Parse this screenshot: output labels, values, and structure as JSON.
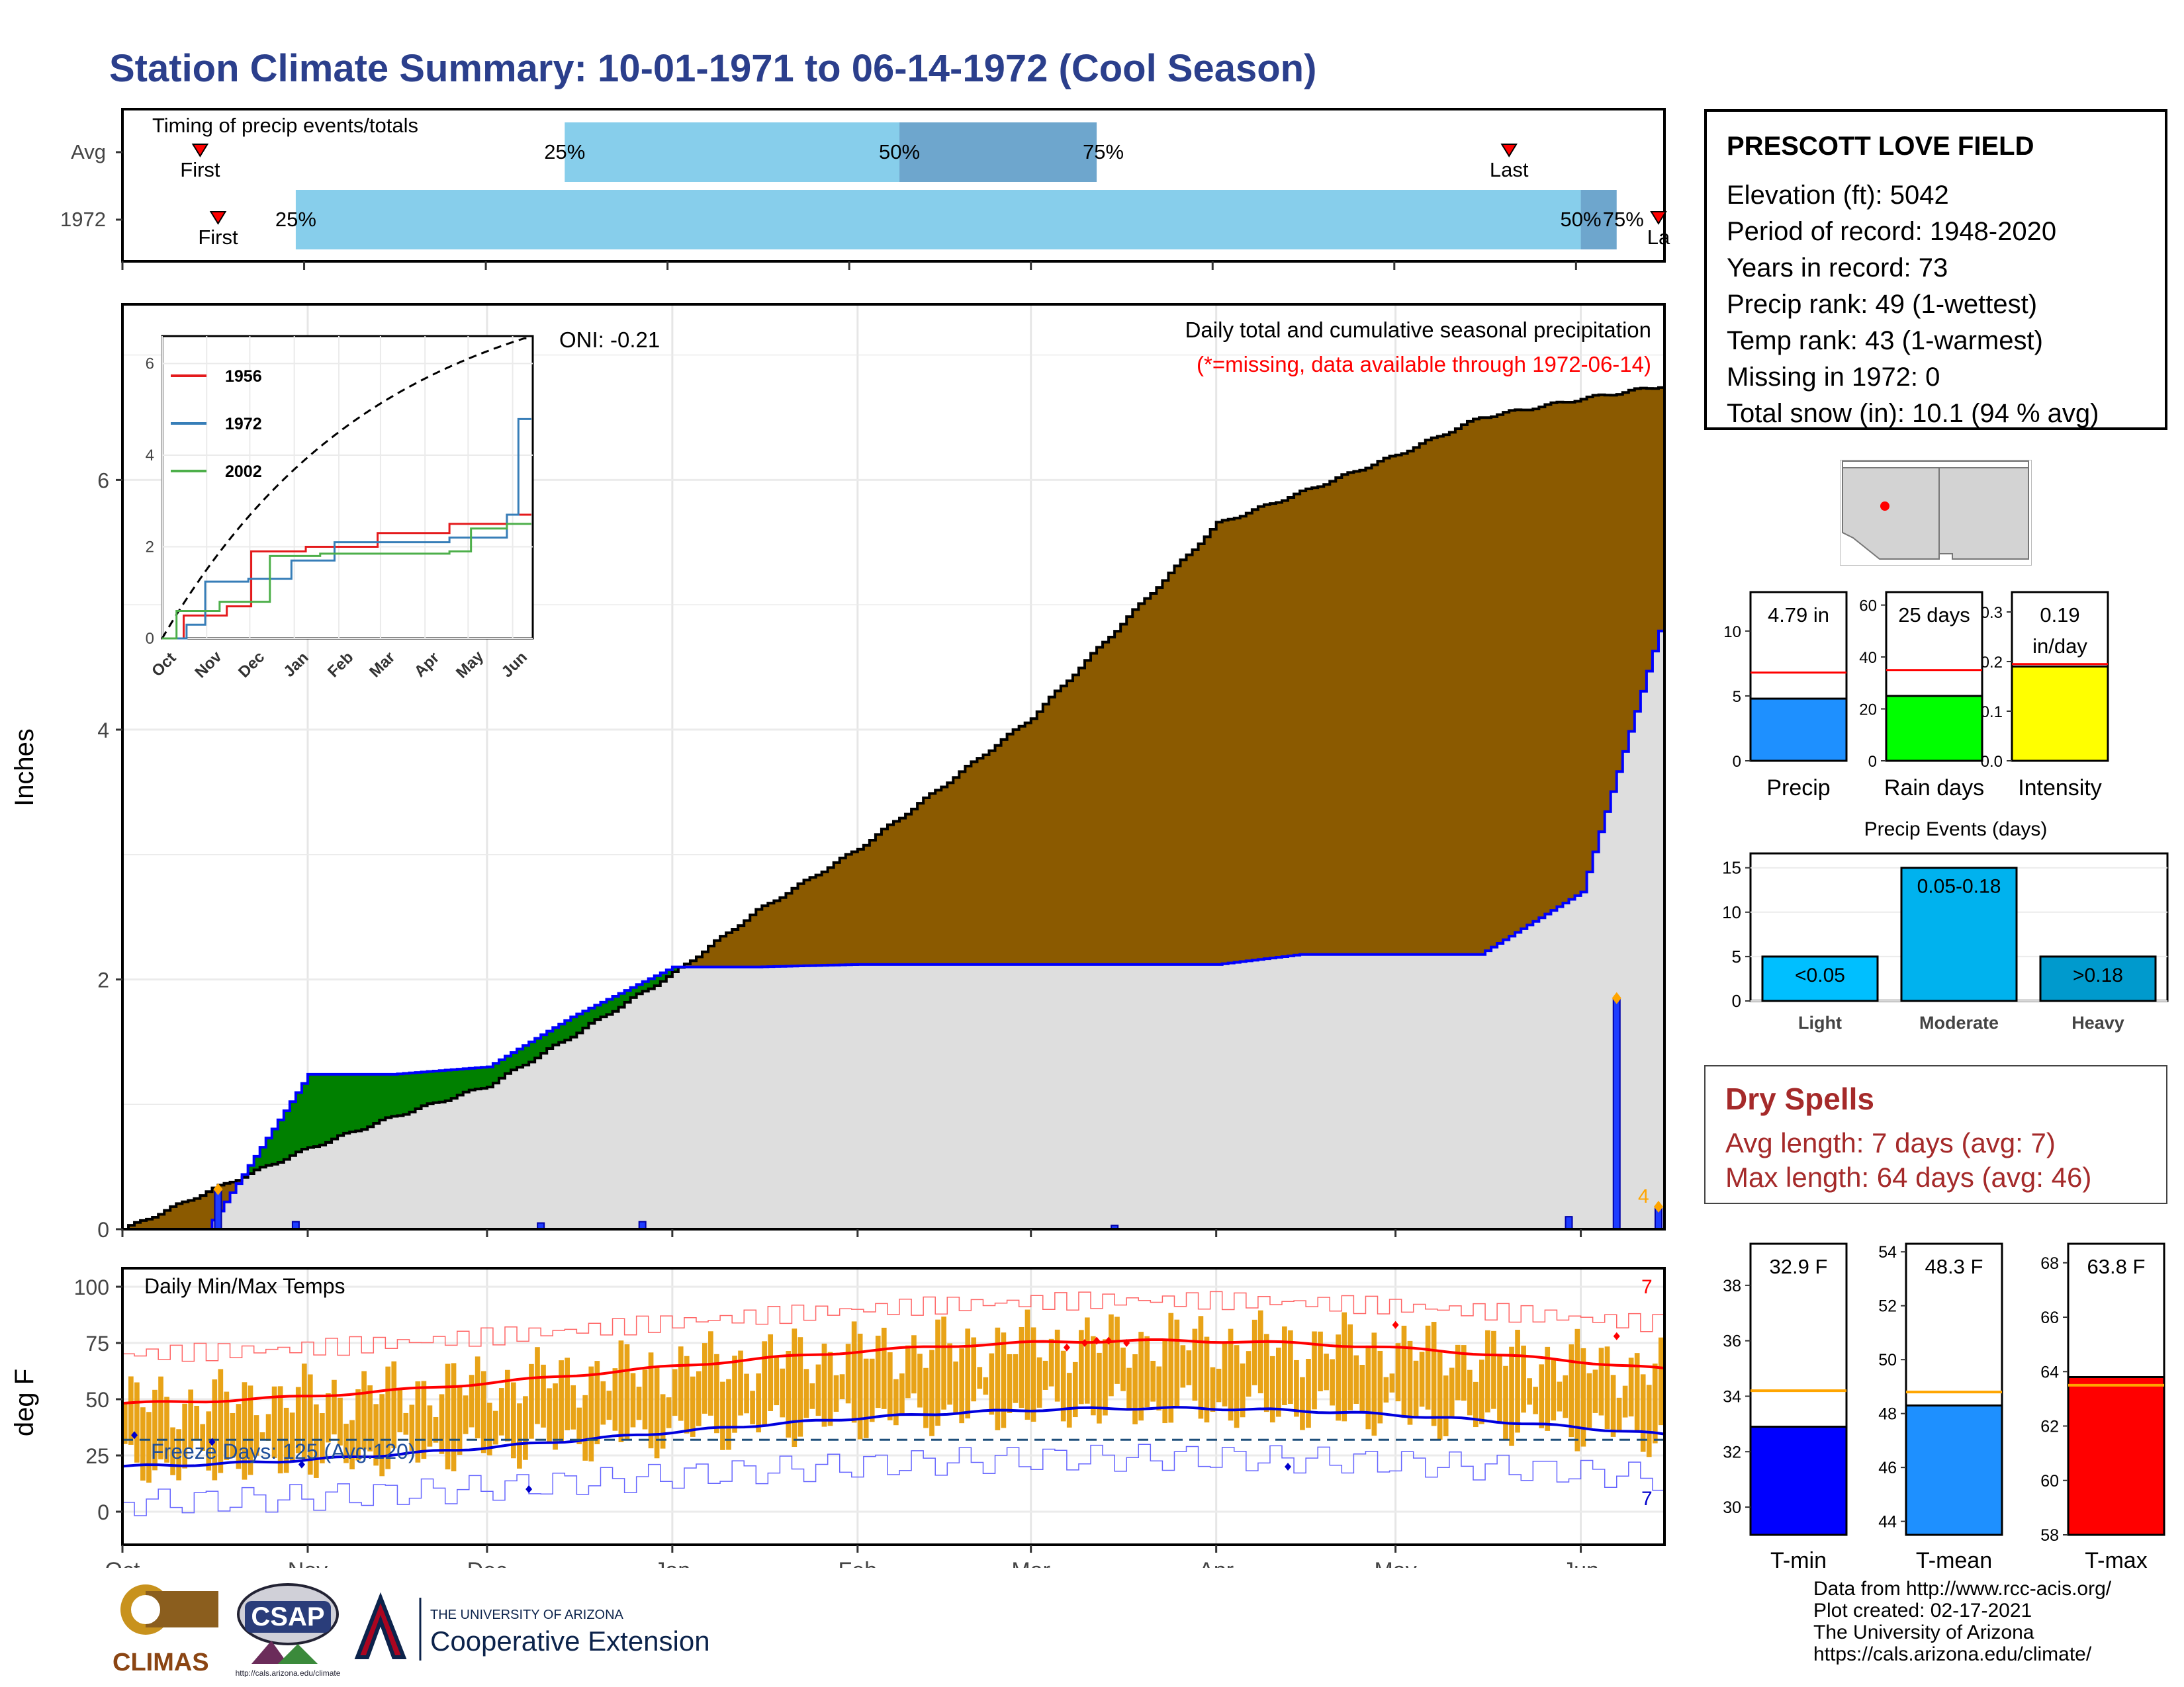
{
  "title": "Station Climate Summary: 10-01-1971 to 06-14-1972 (Cool Season)",
  "timing": {
    "label": "Timing of precip events/totals",
    "rows": [
      {
        "name": "Avg",
        "first_label": "First",
        "last_label": "Last",
        "first_date": "1971-10-14",
        "last_date": "1972-05-20",
        "q25": "1971-12-14",
        "q50": "1972-02-08",
        "q75": "1972-03-12",
        "labels": [
          "25%",
          "50%",
          "75%"
        ]
      },
      {
        "name": "1972",
        "first_label": "First",
        "last_label": "La",
        "first_date": "1971-10-17",
        "last_date": "1972-06-14",
        "q25": "1971-10-30",
        "q50": "1972-06-01",
        "q75": "1972-06-07",
        "labels": [
          "25%",
          "50%",
          "75%"
        ]
      }
    ]
  },
  "main_chart": {
    "ylabel": "Inches",
    "yticks": [
      "0",
      "2",
      "4",
      "6"
    ],
    "months": [
      "Oct",
      "Nov",
      "Dec",
      "Jan",
      "Feb",
      "Mar",
      "Apr",
      "May",
      "Jun"
    ],
    "note1": "Daily total and cumulative seasonal precipitation",
    "note2": "(*=missing, data available through 1972-06-14)",
    "oni": "ONI: -0.21",
    "marker_count": "4"
  },
  "inset": {
    "yticks": [
      "0",
      "2",
      "4",
      "6"
    ],
    "months": [
      "Oct",
      "Nov",
      "Dec",
      "Jan",
      "Feb",
      "Mar",
      "Apr",
      "May",
      "Jun"
    ],
    "legend": [
      "1956",
      "1972",
      "2002"
    ],
    "colors": {
      "1956": "#e41a1c",
      "1972": "#377eb8",
      "2002": "#4daf4a"
    }
  },
  "temp_chart": {
    "ylabel": "deg F",
    "label": "Daily Min/Max Temps",
    "yticks": [
      "0",
      "25",
      "50",
      "75",
      "100"
    ],
    "freeze_label": "Freeze Days: 125 (Avg:120)",
    "record_max_count": "7",
    "record_min_count": "7"
  },
  "station": {
    "name": "PRESCOTT LOVE FIELD",
    "lines": [
      "Elevation (ft): 5042",
      "Period of record: 1948-2020",
      "Years in record: 73",
      "Precip rank: 49 (1-wettest)",
      "Temp rank: 43 (1-warmest)",
      "Missing in 1972: 0",
      "Total snow (in): 10.1 (94 % avg)"
    ]
  },
  "summary_bars": [
    {
      "label": "Precip",
      "value_text": "4.79 in",
      "value": 4.79,
      "avg": 6.8,
      "ymax": 13,
      "ticks": [
        "0",
        "5",
        "10"
      ],
      "color": "#1e90ff"
    },
    {
      "label": "Rain days",
      "value_text": "25 days",
      "value": 25,
      "avg": 35,
      "ymax": 65,
      "ticks": [
        "0",
        "20",
        "40",
        "60"
      ],
      "color": "#00ff00"
    },
    {
      "label": "Intensity",
      "value_text": "0.19\nin/day",
      "value_line1": "0.19",
      "value_line2": "in/day",
      "value": 0.19,
      "avg": 0.195,
      "ymax": 0.34,
      "ticks": [
        "0.0",
        "0.1",
        "0.2",
        "0.3"
      ],
      "color": "#ffff00"
    }
  ],
  "events": {
    "title": "Precip Events (days)",
    "ticks": [
      "0",
      "5",
      "10",
      "15"
    ],
    "bars": [
      {
        "cat": "Light",
        "label": "<0.05",
        "value": 5,
        "color": "#00bfff"
      },
      {
        "cat": "Moderate",
        "label": "0.05-0.18",
        "value": 15,
        "color": "#00b2ee"
      },
      {
        "cat": "Heavy",
        "label": ">0.18",
        "value": 5,
        "color": "#009acd"
      }
    ]
  },
  "dry_spells": {
    "title": "Dry Spells",
    "avg_line": "Avg length: 7 days (avg: 7)",
    "max_line": "Max length: 64 days (avg: 46)"
  },
  "temp_bars": [
    {
      "label": "T-min",
      "value_text": "32.9 F",
      "value": 32.9,
      "avg": 34.2,
      "ymin": 29,
      "ymax": 39.5,
      "ticks": [
        "30",
        "32",
        "34",
        "36",
        "38"
      ],
      "tick_vals": [
        30,
        32,
        34,
        36,
        38
      ],
      "color": "#0000ff"
    },
    {
      "label": "T-mean",
      "value_text": "48.3 F",
      "value": 48.3,
      "avg": 48.8,
      "ymin": 43.5,
      "ymax": 54.3,
      "ticks": [
        "44",
        "46",
        "48",
        "50",
        "52",
        "54"
      ],
      "tick_vals": [
        44,
        46,
        48,
        50,
        52,
        54
      ],
      "color": "#1e90ff"
    },
    {
      "label": "T-max",
      "value_text": "63.8 F",
      "value": 63.8,
      "avg": 63.5,
      "ymin": 58,
      "ymax": 68.7,
      "ticks": [
        "58",
        "60",
        "62",
        "64",
        "66",
        "68"
      ],
      "tick_vals": [
        58,
        60,
        62,
        64,
        66,
        68
      ],
      "color": "#ff0000"
    }
  ],
  "footer": {
    "lines": [
      "Data from http://www.rcc-acis.org/",
      "Plot created: 02-17-2021",
      "The University of Arizona",
      "https://cals.arizona.edu/climate/"
    ],
    "logo_climas": "CLIMAS",
    "logo_csap": "CSAP",
    "logo_csap_url": "http://cals.arizona.edu/climate",
    "ua_line1": "THE UNIVERSITY OF ARIZONA",
    "ua_line2": "Cooperative Extension"
  },
  "chart_data": {
    "type": "area",
    "title": "Daily total and cumulative seasonal precipitation",
    "ylabel": "Inches",
    "ylim": [
      0,
      7.3
    ],
    "x": [
      "1971-10-01",
      "1971-10-15",
      "1971-11-01",
      "1971-11-15",
      "1971-12-01",
      "1971-12-15",
      "1972-01-01",
      "1972-01-15",
      "1972-02-01",
      "1972-02-15",
      "1972-03-01",
      "1972-03-15",
      "1972-04-01",
      "1972-04-15",
      "1972-05-01",
      "1972-05-15",
      "1972-06-01",
      "1972-06-14"
    ],
    "series": [
      {
        "name": "Avg cumulative",
        "values": [
          0.0,
          0.3,
          0.65,
          0.9,
          1.15,
          1.55,
          2.05,
          2.55,
          3.05,
          3.55,
          4.1,
          4.8,
          5.65,
          5.9,
          6.2,
          6.5,
          6.65,
          6.75
        ]
      },
      {
        "name": "1972 cumulative",
        "values": [
          0.0,
          0.0,
          1.24,
          1.24,
          1.3,
          1.7,
          2.1,
          2.1,
          2.12,
          2.12,
          2.12,
          2.12,
          2.12,
          2.2,
          2.2,
          2.2,
          2.7,
          4.79
        ]
      }
    ],
    "daily_precip": [
      {
        "date": "1971-10-17",
        "value": 0.32
      },
      {
        "date": "1971-10-30",
        "value": 0.06
      },
      {
        "date": "1971-12-10",
        "value": 0.05
      },
      {
        "date": "1971-12-27",
        "value": 0.06
      },
      {
        "date": "1972-03-15",
        "value": 0.03
      },
      {
        "date": "1972-05-30",
        "value": 0.1
      },
      {
        "date": "1972-06-07",
        "value": 1.85
      },
      {
        "date": "1972-06-14",
        "value": 0.18
      }
    ]
  }
}
